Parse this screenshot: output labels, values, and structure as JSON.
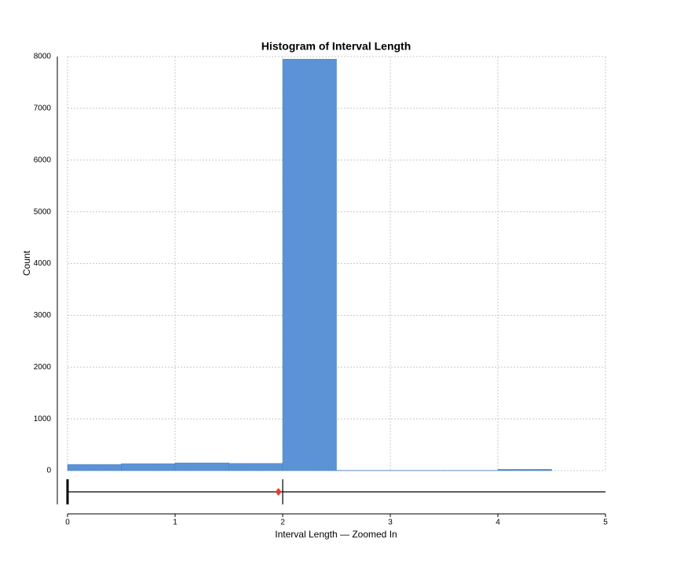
{
  "chart_data": {
    "type": "histogram",
    "title": "Histogram of Interval Length",
    "x_label": "Interval Length — Zoomed In",
    "y_label": "Count",
    "bins": [
      0,
      0.5,
      1,
      1.5,
      2,
      2.5,
      3,
      3.5,
      4,
      4.5,
      5
    ],
    "counts": [
      120,
      135,
      150,
      140,
      7950,
      5,
      5,
      5,
      25,
      0
    ],
    "color": "#5b93d6",
    "xlim": [
      0,
      5
    ],
    "xticks": [
      0,
      1,
      2,
      3,
      4,
      5
    ],
    "ylim": [
      0,
      8000
    ],
    "yticks": [
      0,
      1000,
      2000,
      3000,
      4000,
      5000,
      6000,
      7000,
      8000
    ],
    "grid": true,
    "box": {
      "min": 0,
      "median": 2,
      "mean": 1.96,
      "max": 5,
      "mean_color": "#e0413a"
    }
  }
}
